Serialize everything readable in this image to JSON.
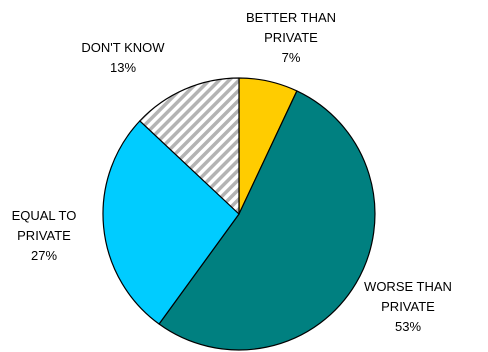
{
  "chart_data": {
    "type": "pie",
    "title": "",
    "start_angle_deg": 0,
    "direction": "clockwise",
    "slices": [
      {
        "label_lines": [
          "BETTER THAN",
          "PRIVATE"
        ],
        "value_text": "7%",
        "value": 7,
        "color": "#FFCC00",
        "pattern": "solid"
      },
      {
        "label_lines": [
          "WORSE THAN",
          "PRIVATE"
        ],
        "value_text": "53%",
        "value": 53,
        "color": "#008080",
        "pattern": "solid"
      },
      {
        "label_lines": [
          "EQUAL TO",
          "PRIVATE"
        ],
        "value_text": "27%",
        "value": 27,
        "color": "#00CCFF",
        "pattern": "solid"
      },
      {
        "label_lines": [
          "DON'T KNOW"
        ],
        "value_text": "13%",
        "value": 13,
        "color": "#C0C0C0",
        "pattern": "diagonal-stripes"
      }
    ],
    "legend": "none"
  }
}
